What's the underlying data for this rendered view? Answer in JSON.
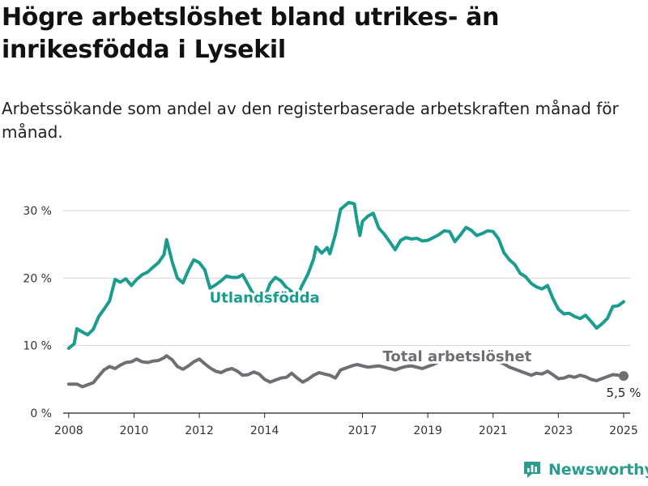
{
  "title": "Högre arbetslöshet bland utrikes- än inrikesfödda i Lysekil",
  "subtitle": "Arbetssökande som andel av den registerbaserade arbetskraften månad för månad.",
  "brand": {
    "name": "Newsworthy",
    "icon": "newsworthy-logo-icon",
    "color": "#2a9d8f"
  },
  "chart_data": {
    "type": "line",
    "title": "",
    "xlabel": "",
    "ylabel": "",
    "ylim": [
      0,
      30
    ],
    "xlim": [
      2007.83,
      2025.2
    ],
    "grid": true,
    "yticks": [
      {
        "value": 0,
        "label": "0 %"
      },
      {
        "value": 10,
        "label": "10 %"
      },
      {
        "value": 20,
        "label": "20 %"
      },
      {
        "value": 30,
        "label": "30 %"
      }
    ],
    "xticks": [
      {
        "value": 2008,
        "label": "2008"
      },
      {
        "value": 2010,
        "label": "2010"
      },
      {
        "value": 2012,
        "label": "2012"
      },
      {
        "value": 2014,
        "label": "2014"
      },
      {
        "value": 2017,
        "label": "2017"
      },
      {
        "value": 2019,
        "label": "2019"
      },
      {
        "value": 2021,
        "label": "2021"
      },
      {
        "value": 2023,
        "label": "2023"
      },
      {
        "value": 2025,
        "label": "2025"
      }
    ],
    "series": [
      {
        "name": "Utlandsfödda",
        "color": "#1a9c8f",
        "label_at": 2014.0,
        "points": [
          [
            2008.0,
            9.6
          ],
          [
            2008.17,
            10.3
          ],
          [
            2008.25,
            12.5
          ],
          [
            2008.42,
            12.0
          ],
          [
            2008.58,
            11.6
          ],
          [
            2008.75,
            12.4
          ],
          [
            2008.92,
            14.3
          ],
          [
            2009.08,
            15.4
          ],
          [
            2009.25,
            16.6
          ],
          [
            2009.42,
            19.8
          ],
          [
            2009.58,
            19.4
          ],
          [
            2009.75,
            19.9
          ],
          [
            2009.92,
            18.9
          ],
          [
            2010.08,
            19.8
          ],
          [
            2010.25,
            20.5
          ],
          [
            2010.42,
            20.9
          ],
          [
            2010.58,
            21.6
          ],
          [
            2010.75,
            22.3
          ],
          [
            2010.92,
            23.5
          ],
          [
            2011.0,
            25.7
          ],
          [
            2011.17,
            22.4
          ],
          [
            2011.33,
            20.0
          ],
          [
            2011.5,
            19.3
          ],
          [
            2011.67,
            21.2
          ],
          [
            2011.83,
            22.7
          ],
          [
            2012.0,
            22.3
          ],
          [
            2012.17,
            21.2
          ],
          [
            2012.33,
            18.5
          ],
          [
            2012.5,
            19.0
          ],
          [
            2012.67,
            19.6
          ],
          [
            2012.83,
            20.3
          ],
          [
            2013.0,
            20.1
          ],
          [
            2013.17,
            20.1
          ],
          [
            2013.33,
            20.5
          ],
          [
            2013.5,
            19.0
          ],
          [
            2013.67,
            17.5
          ],
          [
            2013.83,
            16.2
          ],
          [
            2014.0,
            17.1
          ],
          [
            2014.17,
            19.2
          ],
          [
            2014.33,
            20.1
          ],
          [
            2014.5,
            19.6
          ],
          [
            2014.67,
            18.6
          ],
          [
            2014.83,
            18.0
          ],
          [
            2015.0,
            17.4
          ],
          [
            2015.17,
            19.1
          ],
          [
            2015.33,
            20.6
          ],
          [
            2015.5,
            22.8
          ],
          [
            2015.58,
            24.6
          ],
          [
            2015.75,
            23.7
          ],
          [
            2015.92,
            24.5
          ],
          [
            2016.0,
            23.6
          ],
          [
            2016.17,
            26.5
          ],
          [
            2016.33,
            30.2
          ],
          [
            2016.5,
            30.9
          ],
          [
            2016.58,
            31.2
          ],
          [
            2016.75,
            31.0
          ],
          [
            2016.83,
            28.5
          ],
          [
            2016.92,
            26.3
          ],
          [
            2017.0,
            28.4
          ],
          [
            2017.17,
            29.2
          ],
          [
            2017.33,
            29.6
          ],
          [
            2017.5,
            27.4
          ],
          [
            2017.67,
            26.5
          ],
          [
            2017.83,
            25.4
          ],
          [
            2018.0,
            24.2
          ],
          [
            2018.17,
            25.6
          ],
          [
            2018.33,
            26.0
          ],
          [
            2018.5,
            25.8
          ],
          [
            2018.67,
            25.9
          ],
          [
            2018.83,
            25.5
          ],
          [
            2019.0,
            25.6
          ],
          [
            2019.17,
            26.0
          ],
          [
            2019.33,
            26.4
          ],
          [
            2019.5,
            27.0
          ],
          [
            2019.67,
            26.9
          ],
          [
            2019.83,
            25.4
          ],
          [
            2020.0,
            26.4
          ],
          [
            2020.17,
            27.5
          ],
          [
            2020.33,
            27.1
          ],
          [
            2020.5,
            26.3
          ],
          [
            2020.67,
            26.6
          ],
          [
            2020.83,
            27.0
          ],
          [
            2021.0,
            26.9
          ],
          [
            2021.17,
            25.8
          ],
          [
            2021.33,
            23.8
          ],
          [
            2021.5,
            22.7
          ],
          [
            2021.67,
            22.0
          ],
          [
            2021.83,
            20.7
          ],
          [
            2022.0,
            20.2
          ],
          [
            2022.17,
            19.2
          ],
          [
            2022.33,
            18.7
          ],
          [
            2022.5,
            18.4
          ],
          [
            2022.67,
            18.9
          ],
          [
            2022.83,
            17.0
          ],
          [
            2023.0,
            15.4
          ],
          [
            2023.17,
            14.7
          ],
          [
            2023.33,
            14.8
          ],
          [
            2023.5,
            14.3
          ],
          [
            2023.67,
            14.0
          ],
          [
            2023.83,
            14.5
          ],
          [
            2024.0,
            13.6
          ],
          [
            2024.17,
            12.6
          ],
          [
            2024.33,
            13.2
          ],
          [
            2024.5,
            14.0
          ],
          [
            2024.67,
            15.8
          ],
          [
            2024.83,
            15.9
          ],
          [
            2025.0,
            16.5
          ]
        ]
      },
      {
        "name": "Total arbetslöshet",
        "color": "#6e6e73",
        "label_at": 2019.9,
        "end_label": "5,5 %",
        "points": [
          [
            2008.0,
            4.3
          ],
          [
            2008.25,
            4.3
          ],
          [
            2008.42,
            3.9
          ],
          [
            2008.58,
            4.2
          ],
          [
            2008.75,
            4.5
          ],
          [
            2008.92,
            5.5
          ],
          [
            2009.08,
            6.4
          ],
          [
            2009.25,
            6.9
          ],
          [
            2009.42,
            6.6
          ],
          [
            2009.58,
            7.1
          ],
          [
            2009.75,
            7.5
          ],
          [
            2009.92,
            7.6
          ],
          [
            2010.08,
            8.0
          ],
          [
            2010.25,
            7.6
          ],
          [
            2010.42,
            7.5
          ],
          [
            2010.58,
            7.7
          ],
          [
            2010.75,
            7.8
          ],
          [
            2010.92,
            8.2
          ],
          [
            2011.0,
            8.5
          ],
          [
            2011.17,
            7.9
          ],
          [
            2011.33,
            6.9
          ],
          [
            2011.5,
            6.5
          ],
          [
            2011.67,
            7.0
          ],
          [
            2011.83,
            7.6
          ],
          [
            2012.0,
            8.0
          ],
          [
            2012.17,
            7.3
          ],
          [
            2012.33,
            6.7
          ],
          [
            2012.5,
            6.2
          ],
          [
            2012.67,
            6.0
          ],
          [
            2012.83,
            6.4
          ],
          [
            2013.0,
            6.6
          ],
          [
            2013.17,
            6.2
          ],
          [
            2013.33,
            5.6
          ],
          [
            2013.5,
            5.7
          ],
          [
            2013.67,
            6.1
          ],
          [
            2013.83,
            5.8
          ],
          [
            2014.0,
            5.0
          ],
          [
            2014.17,
            4.6
          ],
          [
            2014.33,
            4.9
          ],
          [
            2014.5,
            5.2
          ],
          [
            2014.67,
            5.3
          ],
          [
            2014.83,
            5.9
          ],
          [
            2015.0,
            5.2
          ],
          [
            2015.17,
            4.6
          ],
          [
            2015.33,
            5.0
          ],
          [
            2015.5,
            5.6
          ],
          [
            2015.67,
            6.0
          ],
          [
            2015.83,
            5.8
          ],
          [
            2016.0,
            5.6
          ],
          [
            2016.17,
            5.2
          ],
          [
            2016.33,
            6.4
          ],
          [
            2016.5,
            6.7
          ],
          [
            2016.67,
            7.0
          ],
          [
            2016.83,
            7.2
          ],
          [
            2017.0,
            7.0
          ],
          [
            2017.17,
            6.8
          ],
          [
            2017.33,
            6.9
          ],
          [
            2017.5,
            7.0
          ],
          [
            2017.67,
            6.8
          ],
          [
            2017.83,
            6.6
          ],
          [
            2018.0,
            6.4
          ],
          [
            2018.17,
            6.7
          ],
          [
            2018.33,
            6.9
          ],
          [
            2018.5,
            7.0
          ],
          [
            2018.67,
            6.8
          ],
          [
            2018.83,
            6.6
          ],
          [
            2019.0,
            6.9
          ],
          [
            2019.17,
            7.2
          ],
          [
            2019.33,
            7.6
          ],
          [
            2019.5,
            8.0
          ],
          [
            2019.67,
            8.3
          ],
          [
            2019.83,
            8.4
          ],
          [
            2020.0,
            8.3
          ],
          [
            2020.17,
            8.6
          ],
          [
            2020.33,
            8.3
          ],
          [
            2020.5,
            8.2
          ],
          [
            2020.67,
            8.5
          ],
          [
            2020.83,
            8.7
          ],
          [
            2021.0,
            8.4
          ],
          [
            2021.17,
            7.6
          ],
          [
            2021.33,
            7.3
          ],
          [
            2021.5,
            6.8
          ],
          [
            2021.67,
            6.5
          ],
          [
            2021.83,
            6.2
          ],
          [
            2022.0,
            5.9
          ],
          [
            2022.17,
            5.6
          ],
          [
            2022.33,
            5.9
          ],
          [
            2022.5,
            5.8
          ],
          [
            2022.67,
            6.2
          ],
          [
            2022.83,
            5.7
          ],
          [
            2023.0,
            5.1
          ],
          [
            2023.17,
            5.2
          ],
          [
            2023.33,
            5.5
          ],
          [
            2023.5,
            5.3
          ],
          [
            2023.67,
            5.6
          ],
          [
            2023.83,
            5.4
          ],
          [
            2024.0,
            5.0
          ],
          [
            2024.17,
            4.8
          ],
          [
            2024.33,
            5.1
          ],
          [
            2024.5,
            5.4
          ],
          [
            2024.67,
            5.7
          ],
          [
            2024.83,
            5.6
          ],
          [
            2025.0,
            5.5
          ]
        ]
      }
    ]
  }
}
